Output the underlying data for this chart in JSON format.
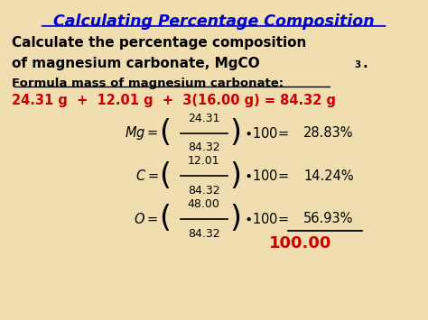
{
  "bg_color": "#f0deb0",
  "title": "Calculating Percentage Composition",
  "title_color": "#0000cc",
  "subtitle_line1": "Calculate the percentage composition",
  "subtitle_line2": "of magnesium carbonate, MgCO",
  "subtitle_subscript": "3",
  "subtitle_color": "#000000",
  "formula_label": "Formula mass of magnesium carbonate:",
  "formula_label_color": "#000000",
  "formula_eq": "24.31 g  +  12.01 g  +  3(16.00 g) = 84.32 g",
  "formula_eq_color": "#cc0000",
  "eq1_symbol": "Mg",
  "eq1_num": "24.31",
  "eq1_den": "84.32",
  "eq2_symbol": "C",
  "eq2_num": "12.01",
  "eq2_den": "84.32",
  "eq3_symbol": "O",
  "eq3_num": "48.00",
  "eq3_den": "84.32",
  "total": "100.00",
  "total_color": "#cc0000",
  "eq_color": "#000000",
  "eq_result1": "28.83%",
  "eq_result2": "14.24%",
  "eq_result3": "56.93%"
}
